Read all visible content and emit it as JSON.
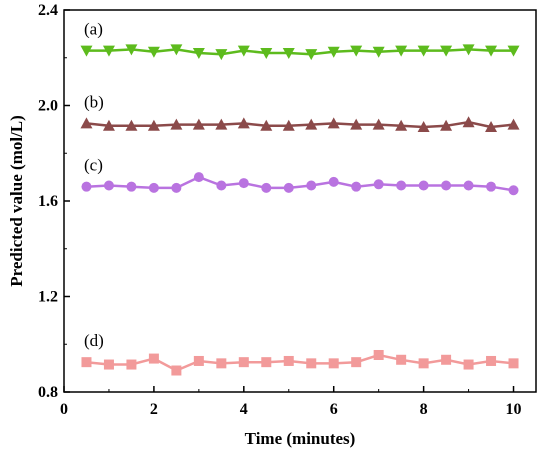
{
  "chart_data": {
    "type": "line",
    "xlabel": "Time (minutes)",
    "ylabel": "Predicted value (mol/L)",
    "xlim": [
      0,
      10.5
    ],
    "ylim": [
      0.8,
      2.4
    ],
    "xticks": [
      0,
      2,
      4,
      6,
      8,
      10
    ],
    "xtick_labels": [
      "0",
      "2",
      "4",
      "6",
      "8",
      "10"
    ],
    "yticks": [
      0.8,
      1.2,
      1.6,
      2.0,
      2.4
    ],
    "ytick_labels": [
      "0.8",
      "1.2",
      "1.6",
      "2.0",
      "2.4"
    ],
    "grid": false,
    "legend": "none",
    "x": [
      0.5,
      1.0,
      1.5,
      2.0,
      2.5,
      3.0,
      3.5,
      4.0,
      4.5,
      5.0,
      5.5,
      6.0,
      6.5,
      7.0,
      7.5,
      8.0,
      8.5,
      9.0,
      9.5,
      10.0
    ],
    "series": [
      {
        "label": "(a)",
        "color": "#5dbb1d",
        "marker": "triangle-down",
        "values": [
          2.23,
          2.23,
          2.235,
          2.225,
          2.235,
          2.22,
          2.215,
          2.23,
          2.22,
          2.22,
          2.215,
          2.225,
          2.23,
          2.225,
          2.23,
          2.23,
          2.23,
          2.235,
          2.23,
          2.23
        ]
      },
      {
        "label": "(b)",
        "color": "#8b4a4a",
        "marker": "triangle-up",
        "values": [
          1.925,
          1.915,
          1.915,
          1.915,
          1.92,
          1.92,
          1.92,
          1.925,
          1.915,
          1.915,
          1.92,
          1.925,
          1.92,
          1.92,
          1.915,
          1.91,
          1.915,
          1.93,
          1.91,
          1.92
        ]
      },
      {
        "label": "(c)",
        "color": "#b973e0",
        "marker": "circle",
        "values": [
          1.66,
          1.665,
          1.66,
          1.655,
          1.655,
          1.7,
          1.665,
          1.675,
          1.655,
          1.655,
          1.665,
          1.68,
          1.66,
          1.67,
          1.665,
          1.665,
          1.665,
          1.665,
          1.66,
          1.645
        ]
      },
      {
        "label": "(d)",
        "color": "#f29a9a",
        "marker": "square",
        "values": [
          0.925,
          0.915,
          0.915,
          0.94,
          0.89,
          0.93,
          0.92,
          0.925,
          0.925,
          0.93,
          0.92,
          0.92,
          0.925,
          0.955,
          0.935,
          0.92,
          0.935,
          0.915,
          0.93,
          0.92
        ]
      }
    ]
  }
}
